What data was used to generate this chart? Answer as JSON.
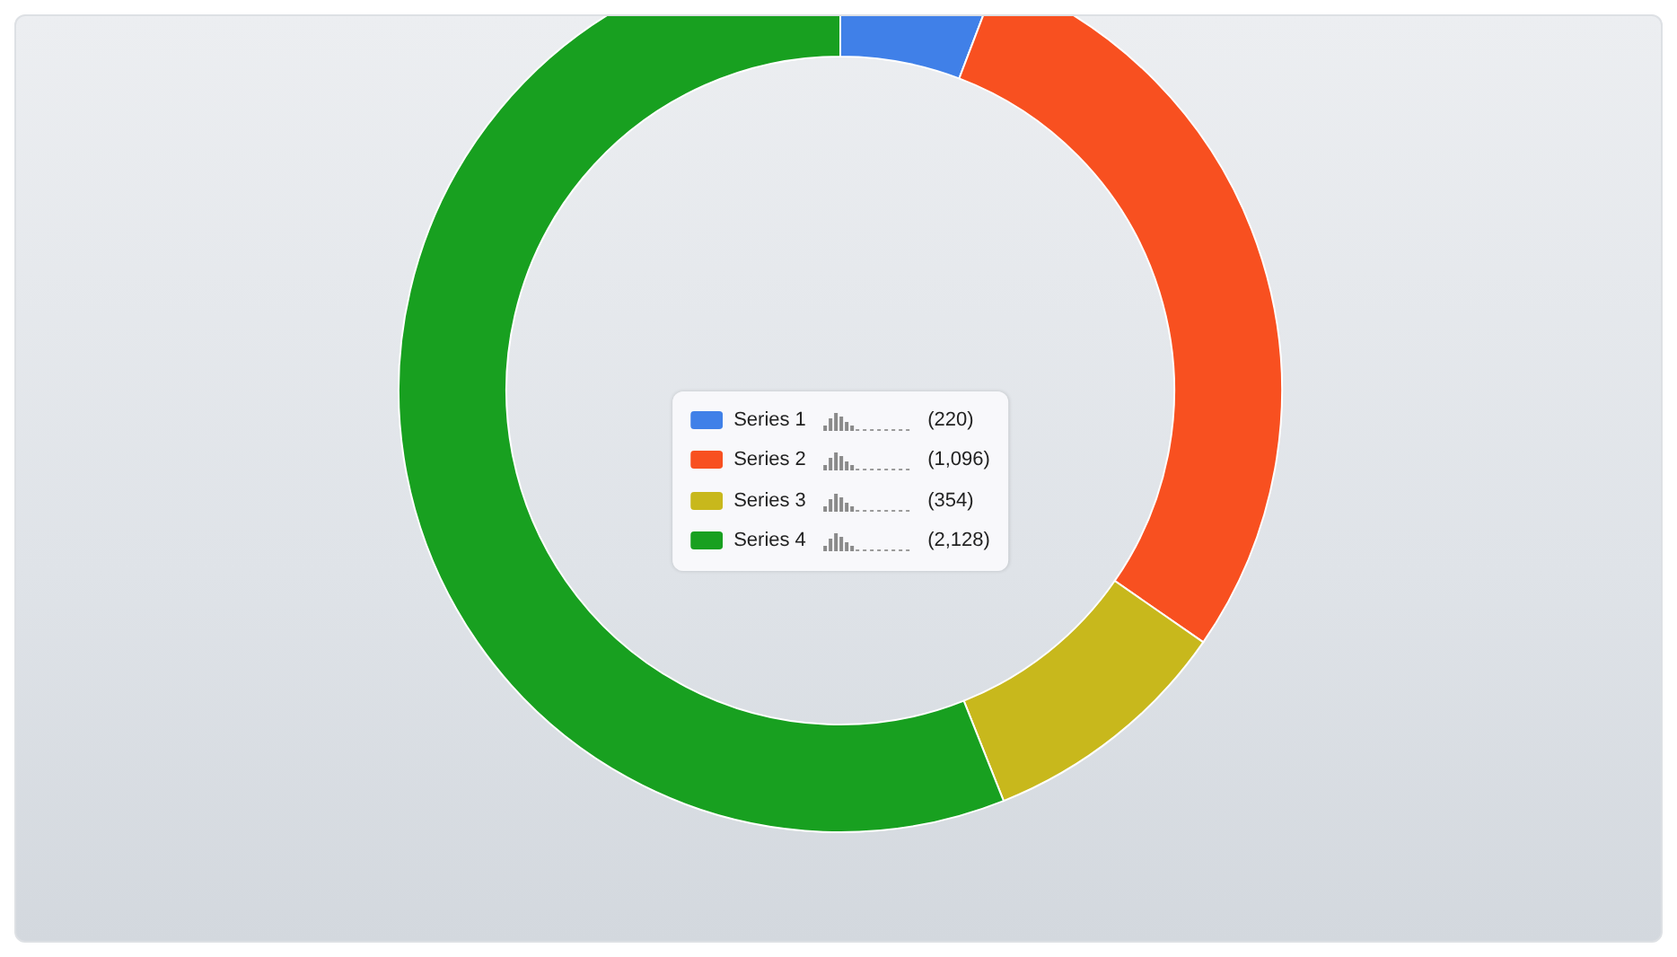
{
  "chart_data": {
    "type": "donut",
    "categories": [
      "Series 1",
      "Series 2",
      "Series 3",
      "Series 4"
    ],
    "values": [
      220,
      1096,
      354,
      2128
    ],
    "value_labels": [
      "(220)",
      "(1,096)",
      "(354)",
      "(2,128)"
    ],
    "colors": [
      "#4080e8",
      "#f85020",
      "#c8b81c",
      "#18a020"
    ],
    "legend": "center"
  }
}
